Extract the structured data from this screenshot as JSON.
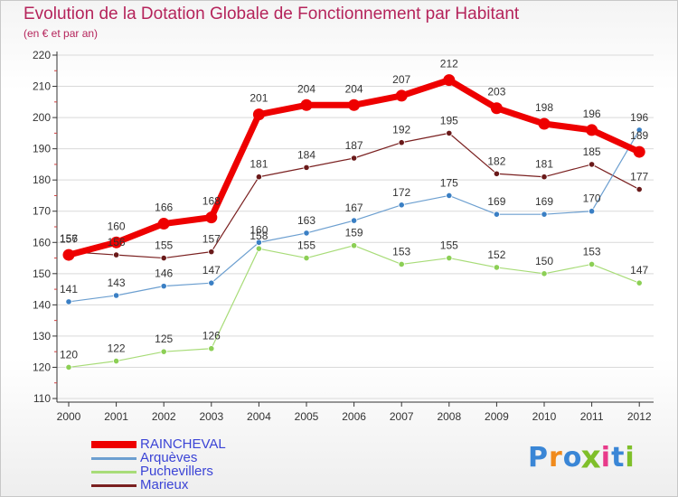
{
  "title": "Evolution de la Dotation Globale de Fonctionnement par Habitant",
  "subtitle": "(en € et par an)",
  "colors": {
    "title": "#b5245b",
    "legend_text": "#3b44d6",
    "axis": "#333333",
    "grid": "#d9d9d9"
  },
  "logo": {
    "text": "Proxiti",
    "letter_colors": [
      "#3a86d6",
      "#f08a1c",
      "#3a86d6",
      "#7fbf2a",
      "#e83a8a",
      "#3a86d6",
      "#7fbf2a"
    ]
  },
  "chart_data": {
    "type": "line",
    "title": "Evolution de la Dotation Globale de Fonctionnement par Habitant",
    "subtitle": "(en € et par an)",
    "xlabel": "",
    "ylabel": "",
    "x": [
      "2000",
      "2001",
      "2002",
      "2003",
      "2004",
      "2005",
      "2006",
      "2007",
      "2008",
      "2009",
      "2010",
      "2011",
      "2012"
    ],
    "ylim": [
      110,
      220
    ],
    "yticks": [
      110,
      120,
      130,
      140,
      150,
      160,
      170,
      180,
      190,
      200,
      210,
      220
    ],
    "grid": "horizontal",
    "legend_position": "bottom-left",
    "series": [
      {
        "name": "Marieux",
        "color": "#7a2020",
        "width": 1.2,
        "marker": "#6a1a1a",
        "values": [
          157,
          156,
          155,
          157,
          181,
          184,
          187,
          192,
          195,
          182,
          181,
          185,
          177
        ]
      },
      {
        "name": "Puchevillers",
        "color": "#a8dc78",
        "width": 1.2,
        "marker": "#8ccf55",
        "values": [
          120,
          122,
          125,
          126,
          158,
          155,
          159,
          153,
          155,
          152,
          150,
          153,
          147
        ]
      },
      {
        "name": "Arquèves",
        "color": "#6c9fd0",
        "width": 1.2,
        "marker": "#3a7fc4",
        "values": [
          141,
          143,
          146,
          147,
          160,
          163,
          167,
          172,
          175,
          169,
          169,
          170,
          196
        ]
      },
      {
        "name": "RAINCHEVAL",
        "color": "#ee0000",
        "width": 7,
        "marker": "#ee0000",
        "values": [
          156,
          160,
          166,
          168,
          201,
          204,
          204,
          207,
          212,
          203,
          198,
          196,
          189
        ]
      }
    ],
    "legend_order": [
      "RAINCHEVAL",
      "Arquèves",
      "Puchevillers",
      "Marieux"
    ]
  }
}
